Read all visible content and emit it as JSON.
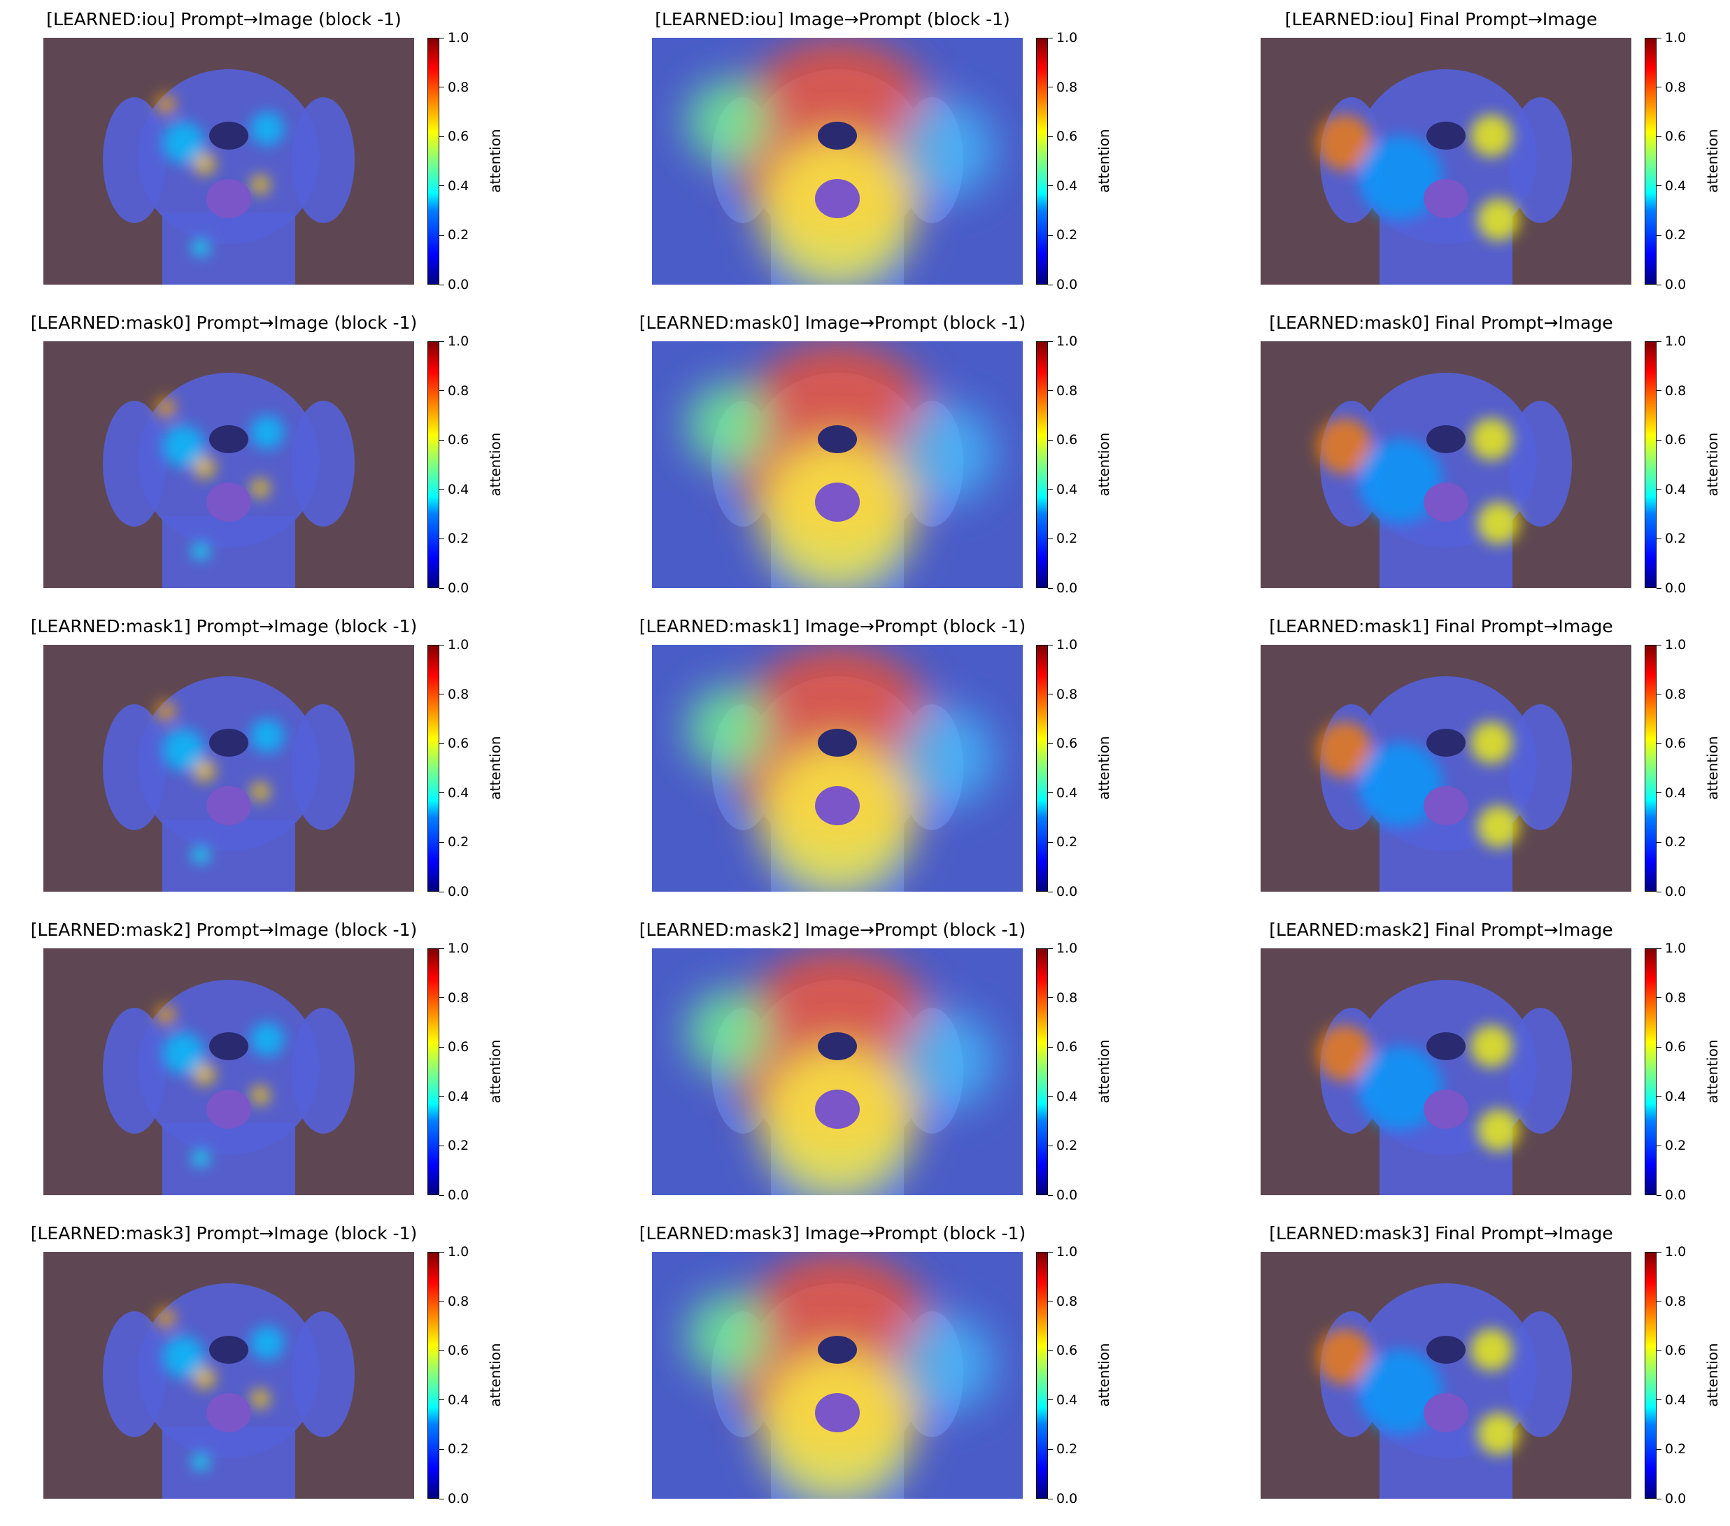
{
  "figure": {
    "panels": [
      [
        "[LEARNED:iou] Prompt→Image (block -1)",
        "[LEARNED:iou] Image→Prompt (block -1)",
        "[LEARNED:iou] Final Prompt→Image"
      ],
      [
        "[LEARNED:mask0] Prompt→Image (block -1)",
        "[LEARNED:mask0] Image→Prompt (block -1)",
        "[LEARNED:mask0] Final Prompt→Image"
      ],
      [
        "[LEARNED:mask1] Prompt→Image (block -1)",
        "[LEARNED:mask1] Image→Prompt (block -1)",
        "[LEARNED:mask1] Final Prompt→Image"
      ],
      [
        "[LEARNED:mask2] Prompt→Image (block -1)",
        "[LEARNED:mask2] Image→Prompt (block -1)",
        "[LEARNED:mask2] Final Prompt→Image"
      ],
      [
        "[LEARNED:mask3] Prompt→Image (block -1)",
        "[LEARNED:mask3] Image→Prompt (block -1)",
        "[LEARNED:mask3] Final Prompt→Image"
      ]
    ]
  },
  "chart_data": {
    "type": "heatmap",
    "rows": [
      "iou",
      "mask0",
      "mask1",
      "mask2",
      "mask3"
    ],
    "columns": [
      "Prompt→Image (block -1)",
      "Image→Prompt (block -1)",
      "Final Prompt→Image"
    ],
    "colorbar": {
      "label": "attention",
      "colormap": "jet",
      "range": [
        0.0,
        1.0
      ],
      "ticks": [
        "0.0",
        "0.2",
        "0.4",
        "0.6",
        "0.8",
        "1.0"
      ]
    },
    "background_color": "#5e4752",
    "heatmap_overlay": "attention heatmap overlaid on a photograph of a smiling dog"
  }
}
